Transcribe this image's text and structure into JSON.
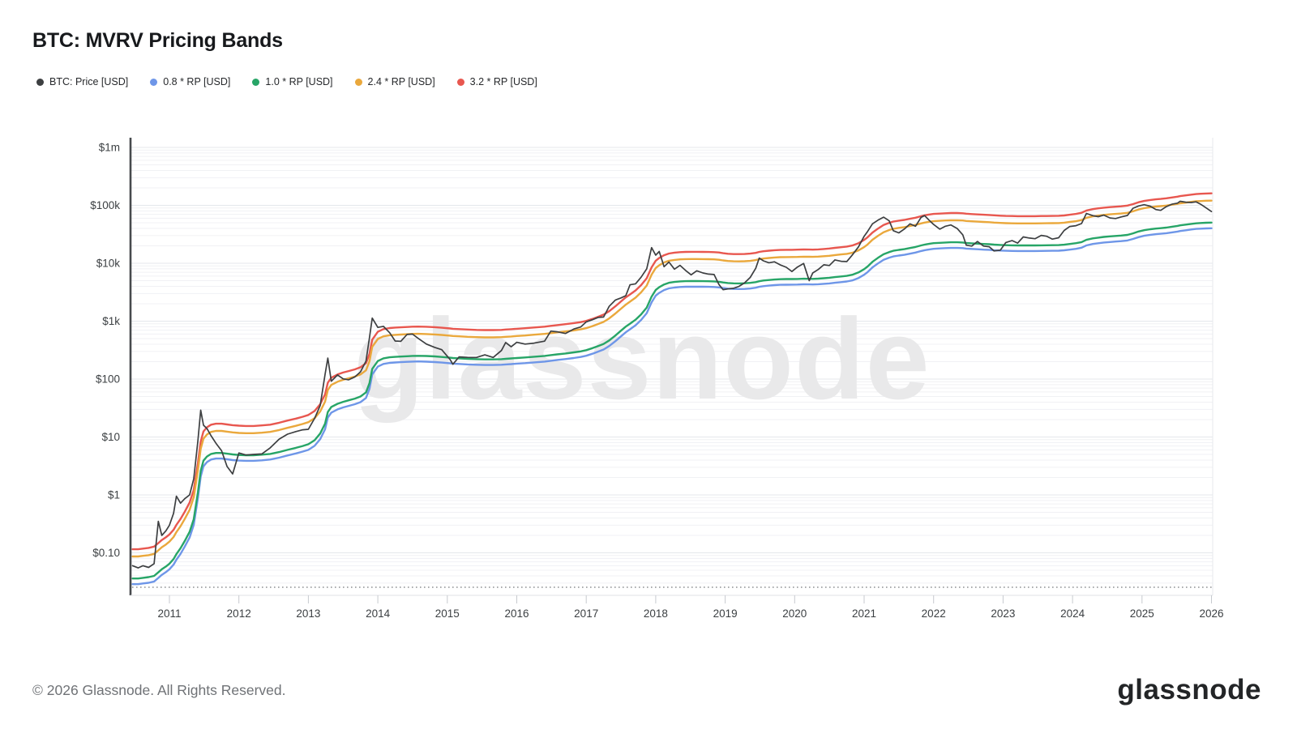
{
  "header": {
    "title": "BTC: MVRV Pricing Bands"
  },
  "watermark": "glassnode",
  "footer": {
    "copyright": "© 2026 Glassnode. All Rights Reserved.",
    "logo": "glassnode"
  },
  "chart_data": {
    "type": "line",
    "title": "BTC: MVRV Pricing Bands",
    "x_axis": {
      "label": "",
      "ticks": [
        2011,
        2012,
        2013,
        2014,
        2015,
        2016,
        2017,
        2018,
        2019,
        2020,
        2021,
        2022,
        2023,
        2024,
        2025,
        2026
      ]
    },
    "y_axis": {
      "label": "",
      "scale": "log",
      "ticks": [
        {
          "label": "$1m",
          "value": 1000000
        },
        {
          "label": "$100k",
          "value": 100000
        },
        {
          "label": "$10k",
          "value": 10000
        },
        {
          "label": "$1k",
          "value": 1000
        },
        {
          "label": "$100",
          "value": 100
        },
        {
          "label": "$10",
          "value": 10
        },
        {
          "label": "$1",
          "value": 1
        },
        {
          "label": "$0.10",
          "value": 0.1
        }
      ],
      "range": [
        0.022,
        1000000
      ]
    },
    "legend_position": "top-left",
    "grid": "horizontal-log",
    "series": [
      {
        "key": "price",
        "name": "BTC: Price [USD]",
        "color": "#3d3f41",
        "width": 1.7,
        "source": "price",
        "multiplier": 1
      },
      {
        "key": "rp-0-8",
        "name": "0.8 * RP [USD]",
        "color": "#6e96e8",
        "width": 2.4,
        "source": "rp",
        "multiplier": 0.8
      },
      {
        "key": "rp-1-0",
        "name": "1.0 * RP [USD]",
        "color": "#27a567",
        "width": 2.4,
        "source": "rp",
        "multiplier": 1.0
      },
      {
        "key": "rp-2-4",
        "name": "2.4 * RP [USD]",
        "color": "#eaa83c",
        "width": 2.4,
        "source": "rp",
        "multiplier": 2.4
      },
      {
        "key": "rp-3-2",
        "name": "3.2 * RP [USD]",
        "color": "#e8574f",
        "width": 2.4,
        "source": "rp",
        "multiplier": 3.2
      }
    ],
    "x": [
      2010.47,
      2010.55,
      2010.62,
      2010.7,
      2010.78,
      2010.84,
      2010.89,
      2010.95,
      2011.0,
      2011.06,
      2011.1,
      2011.16,
      2011.22,
      2011.29,
      2011.35,
      2011.41,
      2011.45,
      2011.49,
      2011.54,
      2011.6,
      2011.67,
      2011.75,
      2011.83,
      2011.91,
      2012.0,
      2012.1,
      2012.21,
      2012.33,
      2012.45,
      2012.58,
      2012.7,
      2012.82,
      2012.92,
      2013.0,
      2013.09,
      2013.17,
      2013.24,
      2013.28,
      2013.33,
      2013.42,
      2013.5,
      2013.58,
      2013.67,
      2013.75,
      2013.83,
      2013.88,
      2013.92,
      2014.0,
      2014.08,
      2014.17,
      2014.25,
      2014.33,
      2014.42,
      2014.5,
      2014.58,
      2014.7,
      2014.82,
      2014.92,
      2015.04,
      2015.08,
      2015.17,
      2015.29,
      2015.42,
      2015.54,
      2015.66,
      2015.78,
      2015.84,
      2015.92,
      2016.0,
      2016.12,
      2016.25,
      2016.4,
      2016.49,
      2016.58,
      2016.7,
      2016.82,
      2016.92,
      2017.0,
      2017.09,
      2017.17,
      2017.25,
      2017.33,
      2017.42,
      2017.5,
      2017.57,
      2017.63,
      2017.71,
      2017.79,
      2017.87,
      2017.94,
      2018.0,
      2018.05,
      2018.12,
      2018.19,
      2018.27,
      2018.35,
      2018.43,
      2018.51,
      2018.59,
      2018.68,
      2018.76,
      2018.84,
      2018.91,
      2018.97,
      2019.04,
      2019.12,
      2019.2,
      2019.28,
      2019.36,
      2019.44,
      2019.49,
      2019.55,
      2019.63,
      2019.71,
      2019.79,
      2019.88,
      2019.96,
      2020.04,
      2020.13,
      2020.21,
      2020.26,
      2020.34,
      2020.42,
      2020.5,
      2020.58,
      2020.67,
      2020.75,
      2020.83,
      2020.92,
      2021.0,
      2021.05,
      2021.12,
      2021.2,
      2021.28,
      2021.36,
      2021.42,
      2021.5,
      2021.58,
      2021.66,
      2021.74,
      2021.82,
      2021.87,
      2021.94,
      2022.0,
      2022.09,
      2022.17,
      2022.25,
      2022.34,
      2022.42,
      2022.47,
      2022.55,
      2022.63,
      2022.72,
      2022.8,
      2022.87,
      2022.96,
      2023.04,
      2023.13,
      2023.21,
      2023.29,
      2023.38,
      2023.46,
      2023.55,
      2023.63,
      2023.71,
      2023.8,
      2023.88,
      2023.96,
      2024.05,
      2024.13,
      2024.2,
      2024.29,
      2024.37,
      2024.45,
      2024.54,
      2024.62,
      2024.7,
      2024.79,
      2024.87,
      2024.95,
      2025.03,
      2025.12,
      2025.2,
      2025.27,
      2025.35,
      2025.43,
      2025.51,
      2025.55,
      2025.63,
      2025.71,
      2025.78,
      2025.85,
      2025.92,
      2026.0
    ],
    "price": [
      0.06,
      0.055,
      0.06,
      0.056,
      0.065,
      0.35,
      0.2,
      0.24,
      0.3,
      0.48,
      0.95,
      0.72,
      0.86,
      1.0,
      1.9,
      8.5,
      29.0,
      16.0,
      14.0,
      10.5,
      7.8,
      5.8,
      3.1,
      2.3,
      5.3,
      4.9,
      5.0,
      5.1,
      6.5,
      9.2,
      11.2,
      12.4,
      13.3,
      13.6,
      21,
      35,
      120,
      230,
      92,
      118,
      101,
      97,
      109,
      133,
      205,
      520,
      1130,
      780,
      815,
      630,
      455,
      448,
      590,
      598,
      505,
      402,
      352,
      322,
      218,
      180,
      242,
      237,
      236,
      262,
      236,
      312,
      428,
      362,
      432,
      402,
      418,
      452,
      672,
      656,
      612,
      732,
      792,
      972,
      1060,
      1160,
      1180,
      1800,
      2320,
      2520,
      2760,
      4250,
      4420,
      5750,
      8000,
      18600,
      13800,
      16000,
      8700,
      10500,
      7900,
      9200,
      7500,
      6300,
      7400,
      6800,
      6500,
      6400,
      4300,
      3500,
      3600,
      3700,
      4000,
      4600,
      5700,
      8200,
      12300,
      11000,
      10200,
      10600,
      9400,
      8500,
      7200,
      8600,
      9900,
      5000,
      6800,
      7800,
      9400,
      9150,
      11400,
      10800,
      10700,
      13900,
      19200,
      29200,
      35500,
      48000,
      55500,
      62500,
      54000,
      36500,
      33500,
      39000,
      47800,
      43500,
      62000,
      66500,
      54500,
      46800,
      38800,
      43500,
      45800,
      39800,
      31000,
      20500,
      19800,
      23800,
      19800,
      19300,
      16300,
      16800,
      22800,
      24600,
      22300,
      28500,
      27200,
      26500,
      30300,
      29200,
      26100,
      27600,
      36800,
      43200,
      44500,
      48500,
      72500,
      66500,
      63800,
      67800,
      60500,
      59200,
      63000,
      66800,
      89000,
      97500,
      102500,
      96500,
      84500,
      82000,
      95000,
      104500,
      109000,
      117500,
      113500,
      112000,
      115000,
      103500,
      91000,
      78000
    ],
    "rp": [
      0.036,
      0.036,
      0.037,
      0.038,
      0.04,
      0.046,
      0.052,
      0.058,
      0.065,
      0.078,
      0.095,
      0.12,
      0.16,
      0.23,
      0.38,
      1.1,
      2.6,
      3.9,
      4.6,
      5.1,
      5.3,
      5.3,
      5.15,
      5.0,
      4.9,
      4.85,
      4.85,
      4.95,
      5.1,
      5.5,
      6.0,
      6.5,
      7.0,
      7.5,
      8.8,
      11.5,
      17,
      27,
      33,
      37.5,
      40.5,
      43,
      46,
      50,
      59,
      85,
      150,
      205,
      228,
      238,
      242,
      245,
      248,
      251,
      252,
      250,
      246,
      241,
      234,
      231,
      228,
      224,
      221,
      219,
      219,
      221,
      224,
      227,
      231,
      236,
      243,
      251,
      259,
      267,
      277,
      289,
      301,
      316,
      342,
      372,
      405,
      465,
      565,
      685,
      805,
      905,
      1060,
      1310,
      1720,
      2650,
      3450,
      3850,
      4300,
      4600,
      4760,
      4860,
      4910,
      4920,
      4920,
      4910,
      4890,
      4860,
      4790,
      4660,
      4560,
      4500,
      4490,
      4510,
      4580,
      4720,
      4900,
      5030,
      5140,
      5240,
      5300,
      5330,
      5340,
      5360,
      5410,
      5390,
      5370,
      5420,
      5510,
      5610,
      5760,
      5910,
      6060,
      6320,
      6950,
      7900,
      8800,
      10600,
      12400,
      14300,
      15600,
      16400,
      17000,
      17500,
      18300,
      19100,
      20300,
      21000,
      21700,
      22200,
      22500,
      22800,
      23000,
      23000,
      22800,
      22400,
      22100,
      21800,
      21500,
      21300,
      21000,
      20700,
      20500,
      20400,
      20300,
      20300,
      20300,
      20300,
      20400,
      20450,
      20500,
      20600,
      20900,
      21500,
      22200,
      23200,
      25400,
      26900,
      27700,
      28500,
      29100,
      29600,
      30100,
      30900,
      32800,
      35300,
      37200,
      38700,
      39700,
      40300,
      41300,
      42700,
      44100,
      45100,
      46400,
      47800,
      48900,
      49500,
      50000,
      50300
    ]
  }
}
